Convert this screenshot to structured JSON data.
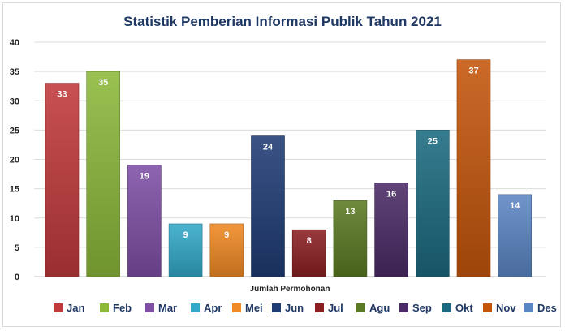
{
  "chart_data": {
    "type": "bar",
    "title": "Statistik Pemberian Informasi Publik Tahun 2021",
    "xlabel": "Jumlah Permohonan",
    "ylabel": "",
    "ylim": [
      0,
      40
    ],
    "yticks": [
      0,
      5,
      10,
      15,
      20,
      25,
      30,
      35,
      40
    ],
    "grid": true,
    "legend_position": "bottom",
    "series": [
      {
        "name": "Jan",
        "value": 33,
        "color": "#c0393b"
      },
      {
        "name": "Feb",
        "value": 35,
        "color": "#8cb83a"
      },
      {
        "name": "Mar",
        "value": 19,
        "color": "#7e4fa5"
      },
      {
        "name": "Apr",
        "value": 9,
        "color": "#32a9c8"
      },
      {
        "name": "Mei",
        "value": 9,
        "color": "#f08a24"
      },
      {
        "name": "Jun",
        "value": 24,
        "color": "#1f3c74"
      },
      {
        "name": "Jul",
        "value": 8,
        "color": "#8b1f22"
      },
      {
        "name": "Agu",
        "value": 13,
        "color": "#5a7a23"
      },
      {
        "name": "Sep",
        "value": 16,
        "color": "#4a2a67"
      },
      {
        "name": "Okt",
        "value": 25,
        "color": "#1b6a80"
      },
      {
        "name": "Nov",
        "value": 37,
        "color": "#c4560c"
      },
      {
        "name": "Des",
        "value": 14,
        "color": "#5b86c4"
      }
    ]
  }
}
